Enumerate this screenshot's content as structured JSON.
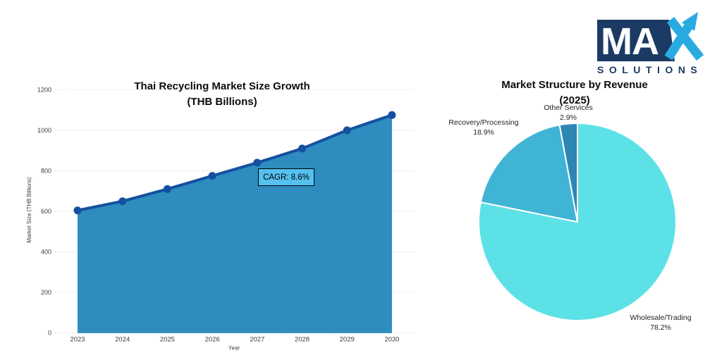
{
  "brand": {
    "text_ma": "MA",
    "text_x": "X",
    "text_solutions": "SOLUTIONS",
    "color_navy": "#1B3A64",
    "color_blue": "#29ABE2"
  },
  "chart_data": [
    {
      "type": "area",
      "title": "Thai Recycling Market Size Growth",
      "subtitle": "(THB Billions)",
      "xlabel": "Year",
      "ylabel": "Market Size (THB Billions)",
      "categories": [
        "2023",
        "2024",
        "2025",
        "2026",
        "2027",
        "2028",
        "2029",
        "2030"
      ],
      "values": [
        605,
        650,
        710,
        775,
        840,
        910,
        1000,
        1075
      ],
      "ylim": [
        0,
        1200
      ],
      "ytick_step": 200,
      "grid": "horizontal-dotted",
      "annotation": {
        "text": "CAGR: 8.6%",
        "bg": "#54C1F0",
        "border": "#000000"
      },
      "line_color": "#1450A0",
      "marker_color": "#1450A0",
      "fill_color": "#2E8CBE"
    },
    {
      "type": "pie",
      "title": "Market Structure by Revenue",
      "subtitle": "(2025)",
      "start": "12-oclock-clockwise",
      "slices": [
        {
          "label": "Wholesale/Trading",
          "pct": 78.2,
          "pct_label": "78.2%",
          "color": "#5CE1E6"
        },
        {
          "label": "Recovery/Processing",
          "pct": 18.9,
          "pct_label": "18.9%",
          "color": "#40B4D5"
        },
        {
          "label": "Other Services",
          "pct": 2.9,
          "pct_label": "2.9%",
          "color": "#2E86B5"
        }
      ]
    }
  ]
}
